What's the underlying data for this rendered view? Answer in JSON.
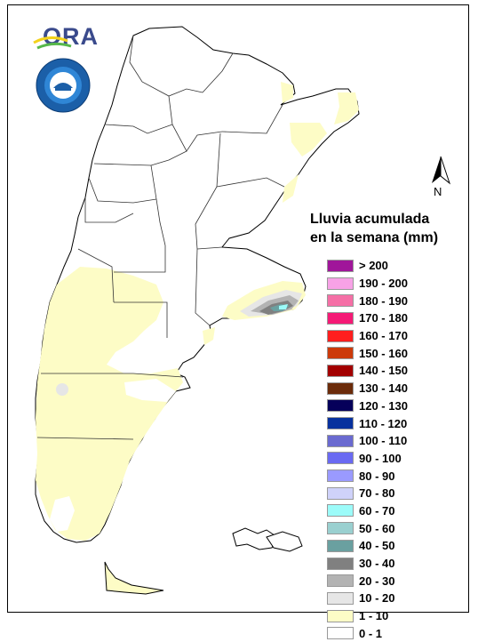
{
  "logos": {
    "ora_text": "ORA",
    "seal_text": "SERVICIO METEOROLOGICO NACIONAL ARGENTINA"
  },
  "north_arrow": {
    "label": "N"
  },
  "legend": {
    "title_line1": "Lluvia acumulada",
    "title_line2": "en la semana (mm)",
    "items": [
      {
        "label": "> 200",
        "color": "#a0169a"
      },
      {
        "label": "190 - 200",
        "color": "#f7a2e6"
      },
      {
        "label": "180 - 190",
        "color": "#f56fa6"
      },
      {
        "label": "170 - 180",
        "color": "#f51a76"
      },
      {
        "label": "160 - 170",
        "color": "#ff1e1e"
      },
      {
        "label": "150 - 160",
        "color": "#cc3a0a"
      },
      {
        "label": "140 - 150",
        "color": "#a30000"
      },
      {
        "label": "130 - 140",
        "color": "#6b2b0a"
      },
      {
        "label": "120 - 130",
        "color": "#06005a"
      },
      {
        "label": "110 - 120",
        "color": "#07319e"
      },
      {
        "label": "100 - 110",
        "color": "#6a6ad0"
      },
      {
        "label": "90 - 100",
        "color": "#6a6af2"
      },
      {
        "label": "80 - 90",
        "color": "#9a9aff"
      },
      {
        "label": "70 - 80",
        "color": "#cfd2fa"
      },
      {
        "label": "60 - 70",
        "color": "#9cfbf9"
      },
      {
        "label": "50 - 60",
        "color": "#9ad0d0"
      },
      {
        "label": "40 - 50",
        "color": "#6aa0a0"
      },
      {
        "label": "30 - 40",
        "color": "#808080"
      },
      {
        "label": "20 - 30",
        "color": "#b3b3b3"
      },
      {
        "label": "10 - 20",
        "color": "#e6e6e6"
      },
      {
        "label": "1 - 10",
        "color": "#fdfcc6"
      },
      {
        "label": "0 - 1",
        "color": "#ffffff"
      }
    ]
  },
  "colors": {
    "rain_1_10": "#fdfcc6",
    "rain_10_20": "#e6e6e6",
    "rain_20_30": "#b3b3b3",
    "rain_30_40": "#808080",
    "rain_40_50": "#6aa0a0",
    "rain_60_70": "#9cfbf9",
    "border": "#000000"
  }
}
